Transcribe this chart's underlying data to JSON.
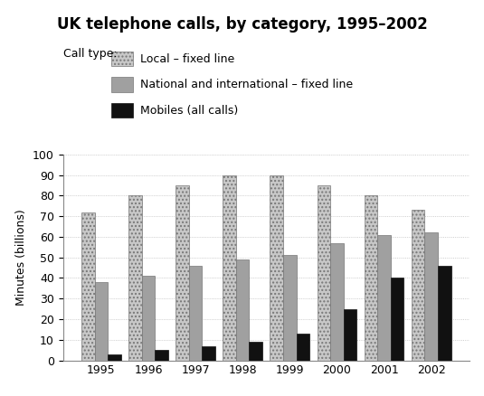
{
  "title": "UK telephone calls, by category, 1995–2002",
  "ylabel": "Minutes (billions)",
  "years": [
    1995,
    1996,
    1997,
    1998,
    1999,
    2000,
    2001,
    2002
  ],
  "local_fixed": [
    72,
    80,
    85,
    90,
    90,
    85,
    80,
    73
  ],
  "national_fixed": [
    38,
    41,
    46,
    49,
    51,
    57,
    61,
    62
  ],
  "mobiles": [
    3,
    5,
    7,
    9,
    13,
    25,
    40,
    46
  ],
  "ylim": [
    0,
    100
  ],
  "yticks": [
    0,
    10,
    20,
    30,
    40,
    50,
    60,
    70,
    80,
    90,
    100
  ],
  "legend_labels": [
    "Local – fixed line",
    "National and international – fixed line",
    "Mobiles (all calls)"
  ],
  "bar_width": 0.28,
  "local_color": "#c8c8c8",
  "national_color": "#a0a0a0",
  "mobile_color": "#111111",
  "grid_color": "#bbbbbb",
  "title_fontsize": 12,
  "axis_fontsize": 9,
  "legend_fontsize": 9
}
